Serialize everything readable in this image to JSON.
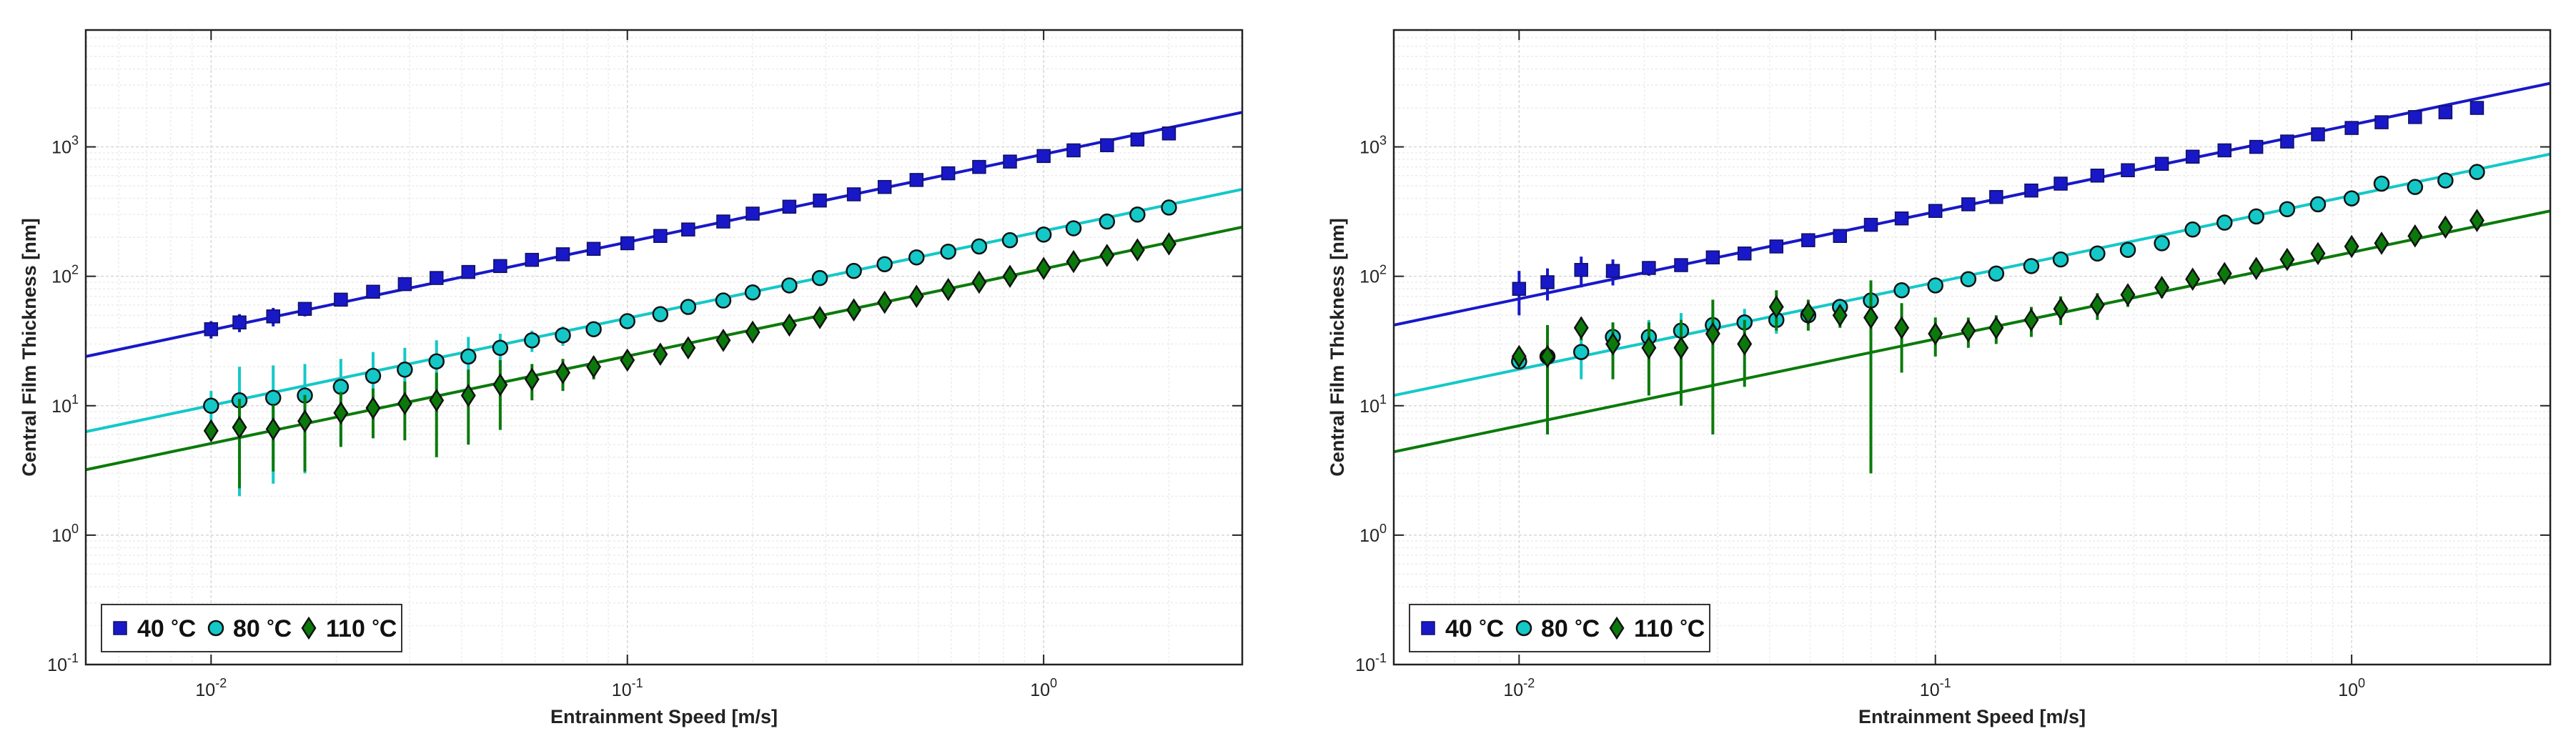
{
  "colors": {
    "c40": "#1818c8",
    "c80": "#14c8c8",
    "c110": "#0b7a0b"
  },
  "chart_data": [
    {
      "type": "scatter",
      "xscale": "log",
      "yscale": "log",
      "xlim": [
        0.005,
        3.0
      ],
      "ylim": [
        0.1,
        8000
      ],
      "xlabel": "Entrainment Speed [m/s]",
      "ylabel": "Central Film Thickness [nm]",
      "grid": true,
      "legend_position": "bottom-left",
      "x_ticks": [
        {
          "v": 0.01,
          "b": "10",
          "e": "-2"
        },
        {
          "v": 0.1,
          "b": "10",
          "e": "-1"
        },
        {
          "v": 1,
          "b": "10",
          "e": "0"
        }
      ],
      "y_ticks": [
        {
          "v": 0.1,
          "b": "10",
          "e": "-1"
        },
        {
          "v": 1,
          "b": "10",
          "e": "0"
        },
        {
          "v": 10,
          "b": "10",
          "e": "1"
        },
        {
          "v": 100,
          "b": "10",
          "e": "2"
        },
        {
          "v": 1000,
          "b": "10",
          "e": "3"
        }
      ],
      "series": [
        {
          "name": "40 °C",
          "label_num": "40",
          "label_unit": "°C",
          "marker": "square",
          "color": "#1818c8",
          "fit": [
            [
              0.005,
              24
            ],
            [
              3.0,
              1850
            ]
          ],
          "x": [
            0.01,
            0.0117,
            0.0141,
            0.0168,
            0.0205,
            0.0245,
            0.0292,
            0.0348,
            0.0415,
            0.0495,
            0.059,
            0.07,
            0.083,
            0.1,
            0.12,
            0.14,
            0.17,
            0.2,
            0.245,
            0.29,
            0.35,
            0.415,
            0.495,
            0.59,
            0.7,
            0.83,
            1.0,
            1.18,
            1.42,
            1.68,
            2.0
          ],
          "y": [
            39,
            44,
            49,
            56,
            66,
            76,
            87,
            97,
            108,
            120,
            134,
            148,
            163,
            180,
            205,
            230,
            265,
            305,
            345,
            385,
            430,
            490,
            555,
            625,
            700,
            770,
            850,
            940,
            1030,
            1140,
            1270
          ],
          "err": [
            6,
            7,
            8,
            7,
            6,
            5,
            0,
            0,
            0,
            0,
            0,
            0,
            0,
            0,
            0,
            0,
            0,
            0,
            0,
            0,
            0,
            0,
            0,
            0,
            0,
            0,
            0,
            0,
            0,
            0,
            0
          ]
        },
        {
          "name": "80 °C",
          "label_num": "80",
          "label_unit": "°C",
          "marker": "circle",
          "color": "#14c8c8",
          "fit": [
            [
              0.005,
              6.3
            ],
            [
              3.0,
              470
            ]
          ],
          "x": [
            0.01,
            0.0117,
            0.0141,
            0.0168,
            0.0205,
            0.0245,
            0.0292,
            0.0348,
            0.0415,
            0.0495,
            0.059,
            0.07,
            0.083,
            0.1,
            0.12,
            0.14,
            0.17,
            0.2,
            0.245,
            0.29,
            0.35,
            0.415,
            0.495,
            0.59,
            0.7,
            0.83,
            1.0,
            1.18,
            1.42,
            1.68,
            2.0
          ],
          "y": [
            10,
            11,
            11.5,
            12,
            14,
            17,
            19,
            22,
            24,
            28,
            32,
            35,
            39,
            45,
            51,
            58,
            65,
            75,
            85,
            97,
            110,
            124,
            140,
            155,
            170,
            190,
            210,
            235,
            265,
            300,
            340
          ],
          "err": [
            3,
            9,
            9,
            9,
            9,
            9,
            9,
            10,
            10,
            8,
            6,
            6,
            5,
            4,
            0,
            0,
            0,
            0,
            0,
            0,
            0,
            0,
            0,
            0,
            0,
            0,
            0,
            0,
            0,
            0,
            0
          ]
        },
        {
          "name": "110 °C",
          "label_num": "110",
          "label_unit": "°C",
          "marker": "diamond",
          "color": "#0b7a0b",
          "fit": [
            [
              0.005,
              3.2
            ],
            [
              3.0,
              240
            ]
          ],
          "x": [
            0.01,
            0.0117,
            0.0141,
            0.0168,
            0.0205,
            0.0245,
            0.0292,
            0.0348,
            0.0415,
            0.0495,
            0.059,
            0.07,
            0.083,
            0.1,
            0.12,
            0.14,
            0.17,
            0.2,
            0.245,
            0.29,
            0.35,
            0.415,
            0.495,
            0.59,
            0.7,
            0.83,
            1.0,
            1.18,
            1.42,
            1.68,
            2.0
          ],
          "y": [
            6.4,
            6.8,
            6.6,
            7.6,
            8.8,
            9.6,
            10.4,
            11,
            12,
            14.5,
            16,
            18,
            20,
            22.5,
            25,
            28,
            32,
            37,
            42,
            48,
            55,
            63,
            70,
            79,
            90,
            100,
            115,
            130,
            145,
            160,
            178
          ],
          "err": [
            1,
            4.5,
            3.5,
            4.5,
            4,
            4,
            5,
            7,
            7,
            8,
            5,
            5,
            4,
            3,
            3,
            3,
            0,
            0,
            0,
            0,
            0,
            0,
            0,
            0,
            0,
            0,
            0,
            0,
            0,
            0,
            0
          ]
        }
      ]
    },
    {
      "type": "scatter",
      "xscale": "log",
      "yscale": "log",
      "xlim": [
        0.005,
        3.0
      ],
      "ylim": [
        0.1,
        8000
      ],
      "xlabel": "Entrainment Speed [m/s]",
      "ylabel": "Central Film Thickness [nm]",
      "grid": true,
      "legend_position": "bottom-left",
      "x_ticks": [
        {
          "v": 0.01,
          "b": "10",
          "e": "-2"
        },
        {
          "v": 0.1,
          "b": "10",
          "e": "-1"
        },
        {
          "v": 1,
          "b": "10",
          "e": "0"
        }
      ],
      "y_ticks": [
        {
          "v": 0.1,
          "b": "10",
          "e": "-1"
        },
        {
          "v": 1,
          "b": "10",
          "e": "0"
        },
        {
          "v": 10,
          "b": "10",
          "e": "1"
        },
        {
          "v": 100,
          "b": "10",
          "e": "2"
        },
        {
          "v": 1000,
          "b": "10",
          "e": "3"
        }
      ],
      "series": [
        {
          "name": "40 °C",
          "label_num": "40",
          "label_unit": "°C",
          "marker": "square",
          "color": "#1818c8",
          "fit": [
            [
              0.005,
              42
            ],
            [
              3.0,
              3100
            ]
          ],
          "x": [
            0.01,
            0.0117,
            0.0141,
            0.0168,
            0.0205,
            0.0245,
            0.0292,
            0.0348,
            0.0415,
            0.0495,
            0.059,
            0.07,
            0.083,
            0.1,
            0.12,
            0.14,
            0.17,
            0.2,
            0.245,
            0.29,
            0.35,
            0.415,
            0.495,
            0.59,
            0.7,
            0.83,
            1.0,
            1.18,
            1.42,
            1.68,
            2.0
          ],
          "y": [
            80,
            90,
            112,
            110,
            116,
            122,
            140,
            150,
            170,
            190,
            205,
            250,
            280,
            320,
            360,
            410,
            460,
            520,
            600,
            660,
            740,
            840,
            940,
            1000,
            1100,
            1250,
            1400,
            1550,
            1700,
            1850,
            2000
          ],
          "err": [
            30,
            25,
            30,
            25,
            15,
            10,
            10,
            8,
            8,
            0,
            0,
            0,
            0,
            0,
            0,
            0,
            0,
            0,
            0,
            0,
            0,
            0,
            0,
            0,
            0,
            0,
            0,
            0,
            0,
            0,
            0
          ]
        },
        {
          "name": "80 °C",
          "label_num": "80",
          "label_unit": "°C",
          "marker": "circle",
          "color": "#14c8c8",
          "fit": [
            [
              0.005,
              12
            ],
            [
              3.0,
              880
            ]
          ],
          "x": [
            0.01,
            0.0117,
            0.0141,
            0.0168,
            0.0205,
            0.0245,
            0.0292,
            0.0348,
            0.0415,
            0.0495,
            0.059,
            0.07,
            0.083,
            0.1,
            0.12,
            0.14,
            0.17,
            0.2,
            0.245,
            0.29,
            0.35,
            0.415,
            0.495,
            0.59,
            0.7,
            0.83,
            1.0,
            1.18,
            1.42,
            1.68,
            2.0
          ],
          "y": [
            22,
            24,
            26,
            34,
            34,
            38,
            42,
            44,
            46,
            50,
            58,
            65,
            78,
            85,
            95,
            105,
            120,
            135,
            150,
            160,
            180,
            230,
            260,
            290,
            330,
            360,
            400,
            520,
            490,
            550,
            640
          ],
          "err": [
            3,
            8,
            10,
            10,
            12,
            14,
            12,
            12,
            10,
            8,
            8,
            8,
            6,
            5,
            5,
            0,
            0,
            0,
            0,
            0,
            0,
            0,
            0,
            0,
            0,
            0,
            0,
            0,
            0,
            0,
            0
          ]
        },
        {
          "name": "110 °C",
          "label_num": "110",
          "label_unit": "°C",
          "marker": "diamond",
          "color": "#0b7a0b",
          "fit": [
            [
              0.005,
              4.4
            ],
            [
              3.0,
              320
            ]
          ],
          "x": [
            0.01,
            0.0117,
            0.0141,
            0.0168,
            0.0205,
            0.0245,
            0.0292,
            0.0348,
            0.0415,
            0.0495,
            0.059,
            0.07,
            0.083,
            0.1,
            0.12,
            0.14,
            0.17,
            0.2,
            0.245,
            0.29,
            0.35,
            0.415,
            0.495,
            0.59,
            0.7,
            0.83,
            1.0,
            1.18,
            1.42,
            1.68,
            2.0
          ],
          "y": [
            24,
            24,
            40,
            30,
            28,
            28,
            36,
            30,
            58,
            52,
            50,
            48,
            40,
            36,
            38,
            40,
            46,
            56,
            60,
            72,
            82,
            95,
            105,
            115,
            135,
            150,
            170,
            180,
            205,
            240,
            270
          ],
          "err": [
            4,
            18,
            8,
            14,
            16,
            18,
            30,
            16,
            20,
            14,
            10,
            45,
            22,
            12,
            10,
            10,
            12,
            14,
            14,
            14,
            14,
            10,
            10,
            0,
            0,
            0,
            0,
            0,
            0,
            0,
            0
          ]
        }
      ]
    }
  ]
}
